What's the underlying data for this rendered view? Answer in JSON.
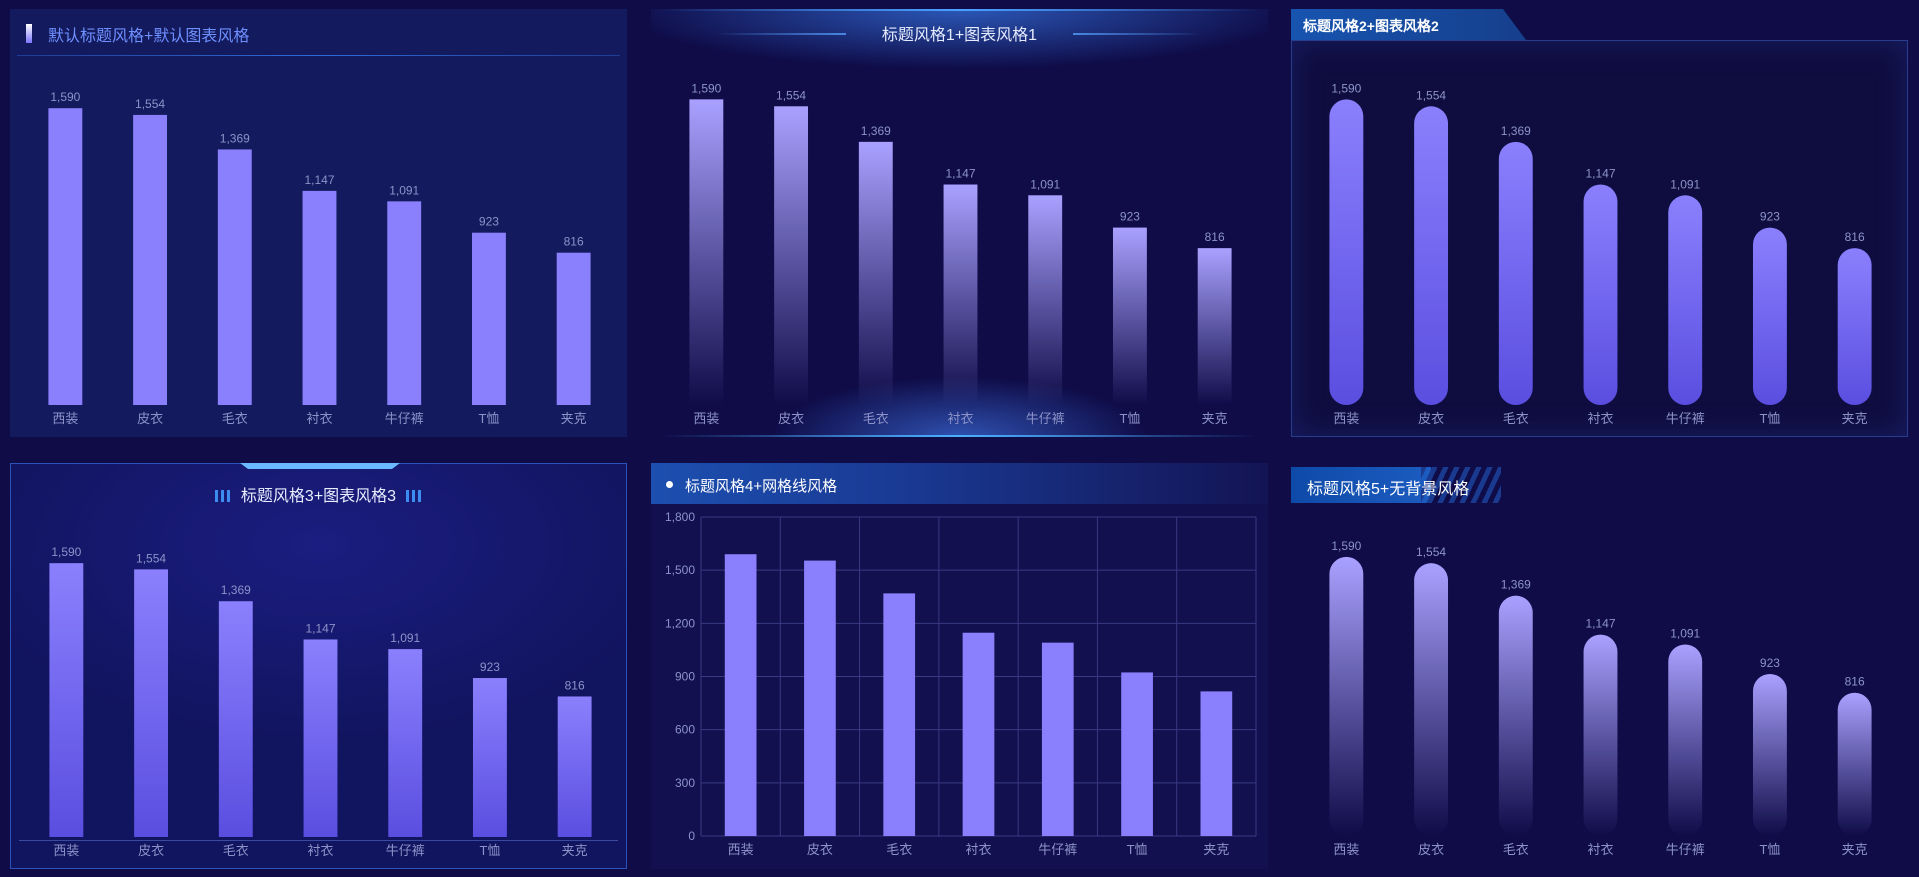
{
  "panels": [
    {
      "title": "默认标题风格+默认图表风格"
    },
    {
      "title": "标题风格1+图表风格1"
    },
    {
      "title": "标题风格2+图表风格2"
    },
    {
      "title": "标题风格3+图表风格3"
    },
    {
      "title": "标题风格4+网格线风格"
    },
    {
      "title": "标题风格5+无背景风格"
    }
  ],
  "colors": {
    "bar": "#8a80fd",
    "bar_dark": "#5a4ee0",
    "bar_light": "#a9a1ff",
    "label": "#8d93c9",
    "grid": "#3a3a84"
  },
  "chart_data": {
    "type": "bar",
    "categories": [
      "西装",
      "皮衣",
      "毛衣",
      "衬衣",
      "牛仔裤",
      "T恤",
      "夹克"
    ],
    "values": [
      1590,
      1554,
      1369,
      1147,
      1091,
      923,
      816
    ],
    "ylim": [
      0,
      1800
    ],
    "yticks": [
      "0",
      "300",
      "600",
      "900",
      "1,200",
      "1,500",
      "1,800"
    ],
    "ytick_values": [
      0,
      300,
      600,
      900,
      1200,
      1500,
      1800
    ],
    "value_labels": [
      "1,590",
      "1,554",
      "1,369",
      "1,147",
      "1,091",
      "923",
      "816"
    ]
  }
}
